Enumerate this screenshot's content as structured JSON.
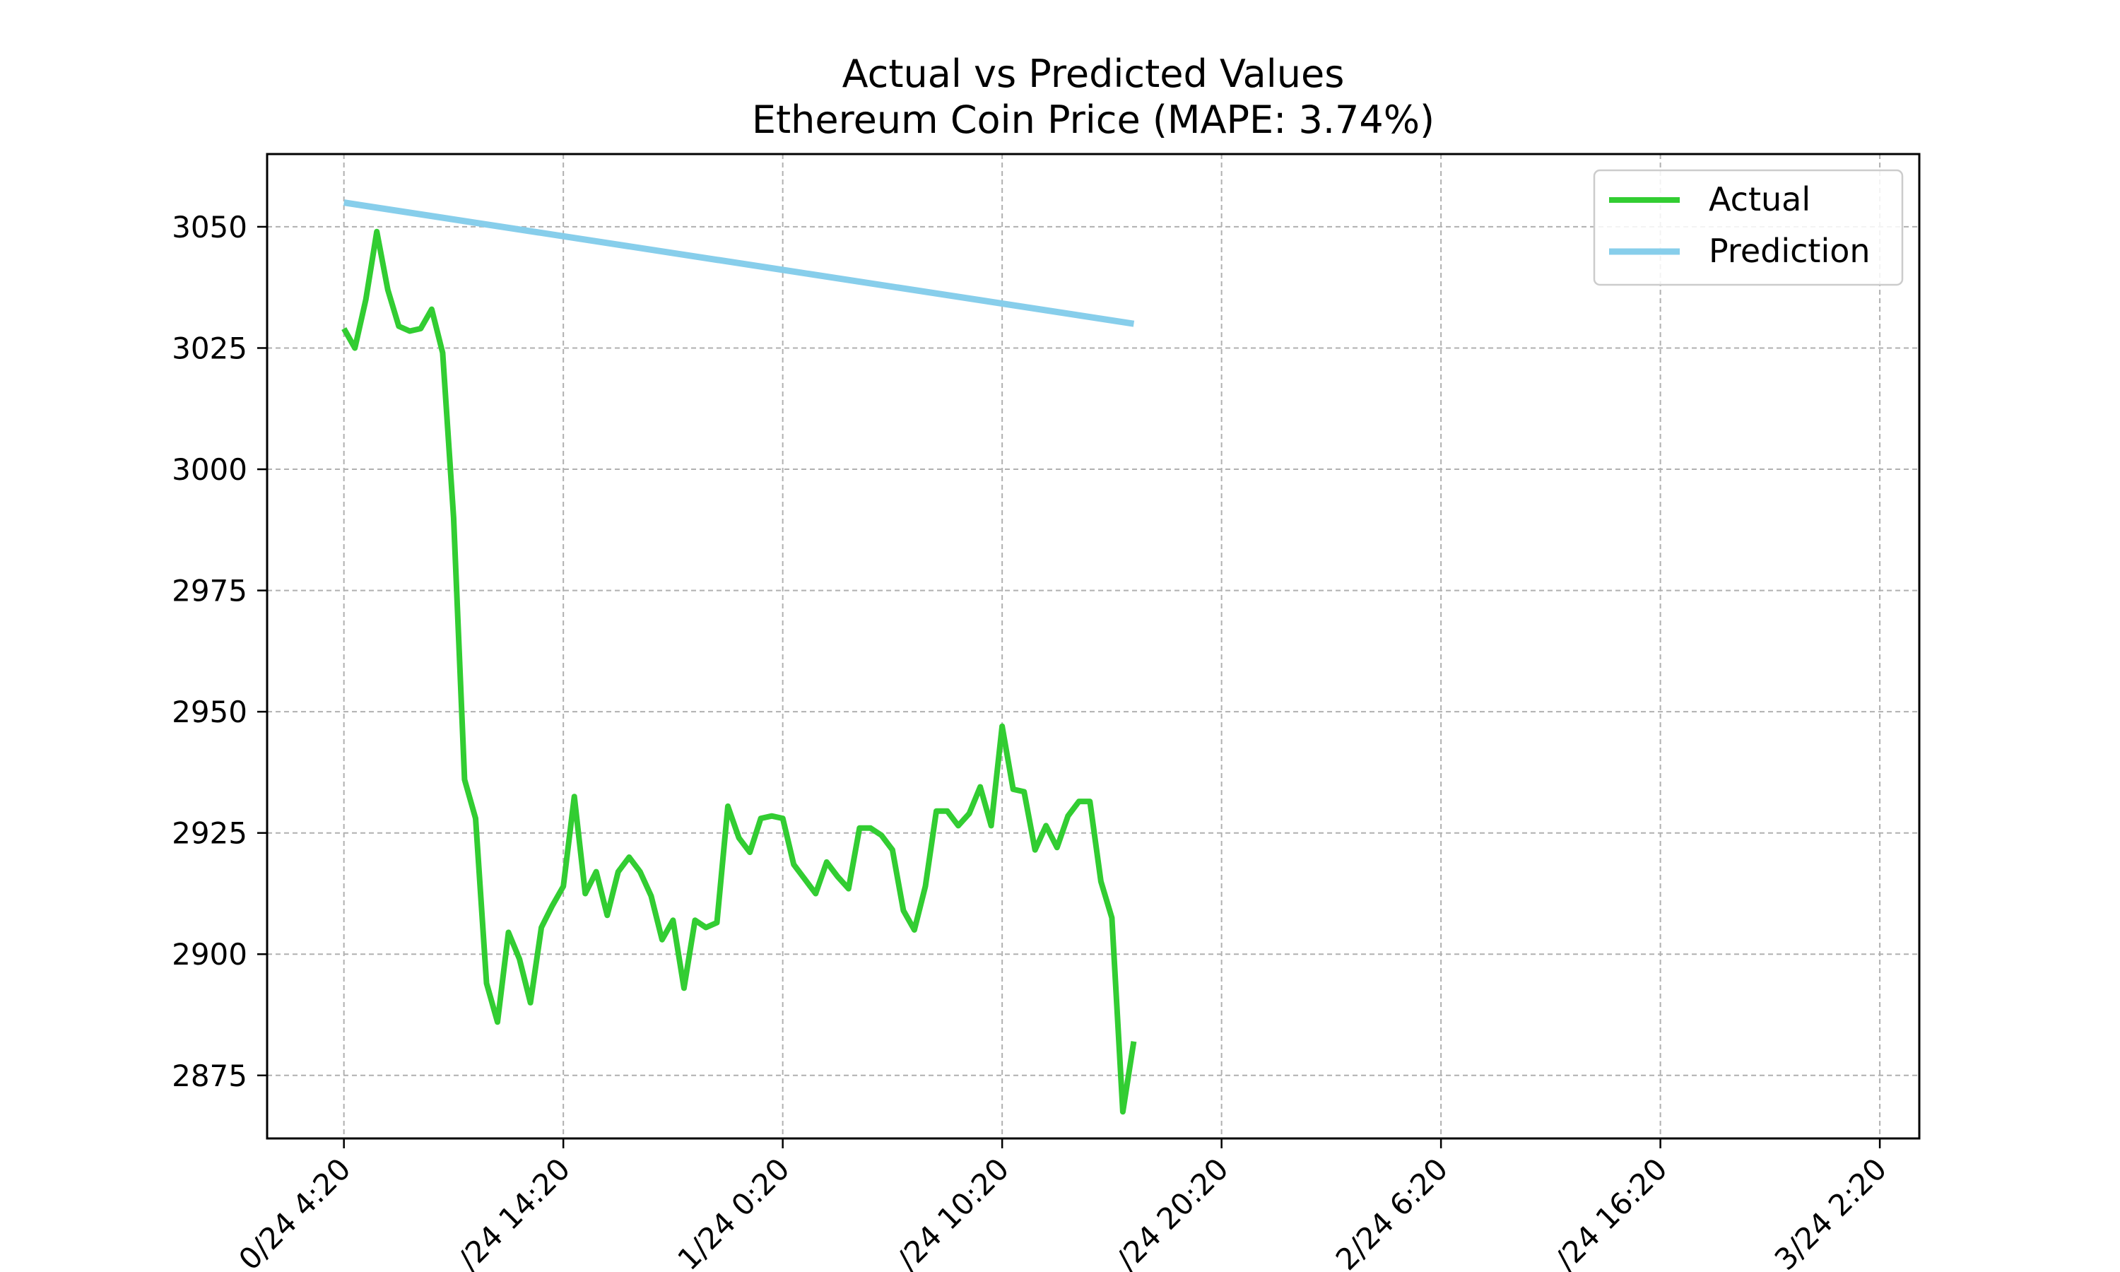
{
  "chart_data": {
    "type": "line",
    "title": "Actual vs Predicted Values",
    "subtitle": "Ethereum Coin Price (MAPE: 3.74%)",
    "xlabel": "",
    "ylabel": "",
    "ylim": [
      2862,
      3065
    ],
    "yticks": [
      2875,
      2900,
      2925,
      2950,
      2975,
      3000,
      3025,
      3050
    ],
    "x_step_label": "30 min",
    "xticks": [
      {
        "index": 0,
        "label": "0/24 4:20"
      },
      {
        "index": 20,
        "label": "/24 14:20"
      },
      {
        "index": 40,
        "label": "1/24 0:20"
      },
      {
        "index": 60,
        "label": "/24 10:20"
      },
      {
        "index": 80,
        "label": "/24 20:20"
      },
      {
        "index": 100,
        "label": "2/24 6:20"
      },
      {
        "index": 120,
        "label": "/24 16:20"
      },
      {
        "index": 140,
        "label": "3/24 2:20"
      }
    ],
    "grid": true,
    "legend_position": "upper-right",
    "series": [
      {
        "name": "Actual",
        "color": "#32cd32",
        "values": [
          3029,
          3025,
          3035,
          3049,
          3037,
          3029.5,
          3028.5,
          3029,
          3033,
          3024,
          2990,
          2936,
          2928,
          2894,
          2886,
          2904.5,
          2899,
          2890,
          2905.5,
          2910,
          2914,
          2932.5,
          2912.5,
          2917,
          2908,
          2917,
          2920,
          2917,
          2912,
          2903,
          2907,
          2893,
          2907,
          2905.5,
          2906.5,
          2930.5,
          2924,
          2921,
          2928,
          2928.5,
          2928,
          2918.5,
          2915.5,
          2912.5,
          2919,
          2916,
          2913.5,
          2926,
          2926,
          2924.5,
          2921.5,
          2909,
          2905,
          2914,
          2929.5,
          2929.5,
          2926.5,
          2929,
          2934.5,
          2926.5,
          2947,
          2934,
          2933.5,
          2921.5,
          2926.5,
          2922,
          2928.5,
          2931.5,
          2931.5,
          2915,
          2907.5,
          2867.5,
          2882
        ]
      },
      {
        "name": "Prediction",
        "color": "#87ceeb",
        "values": [
          3055,
          3030
        ]
      }
    ]
  }
}
